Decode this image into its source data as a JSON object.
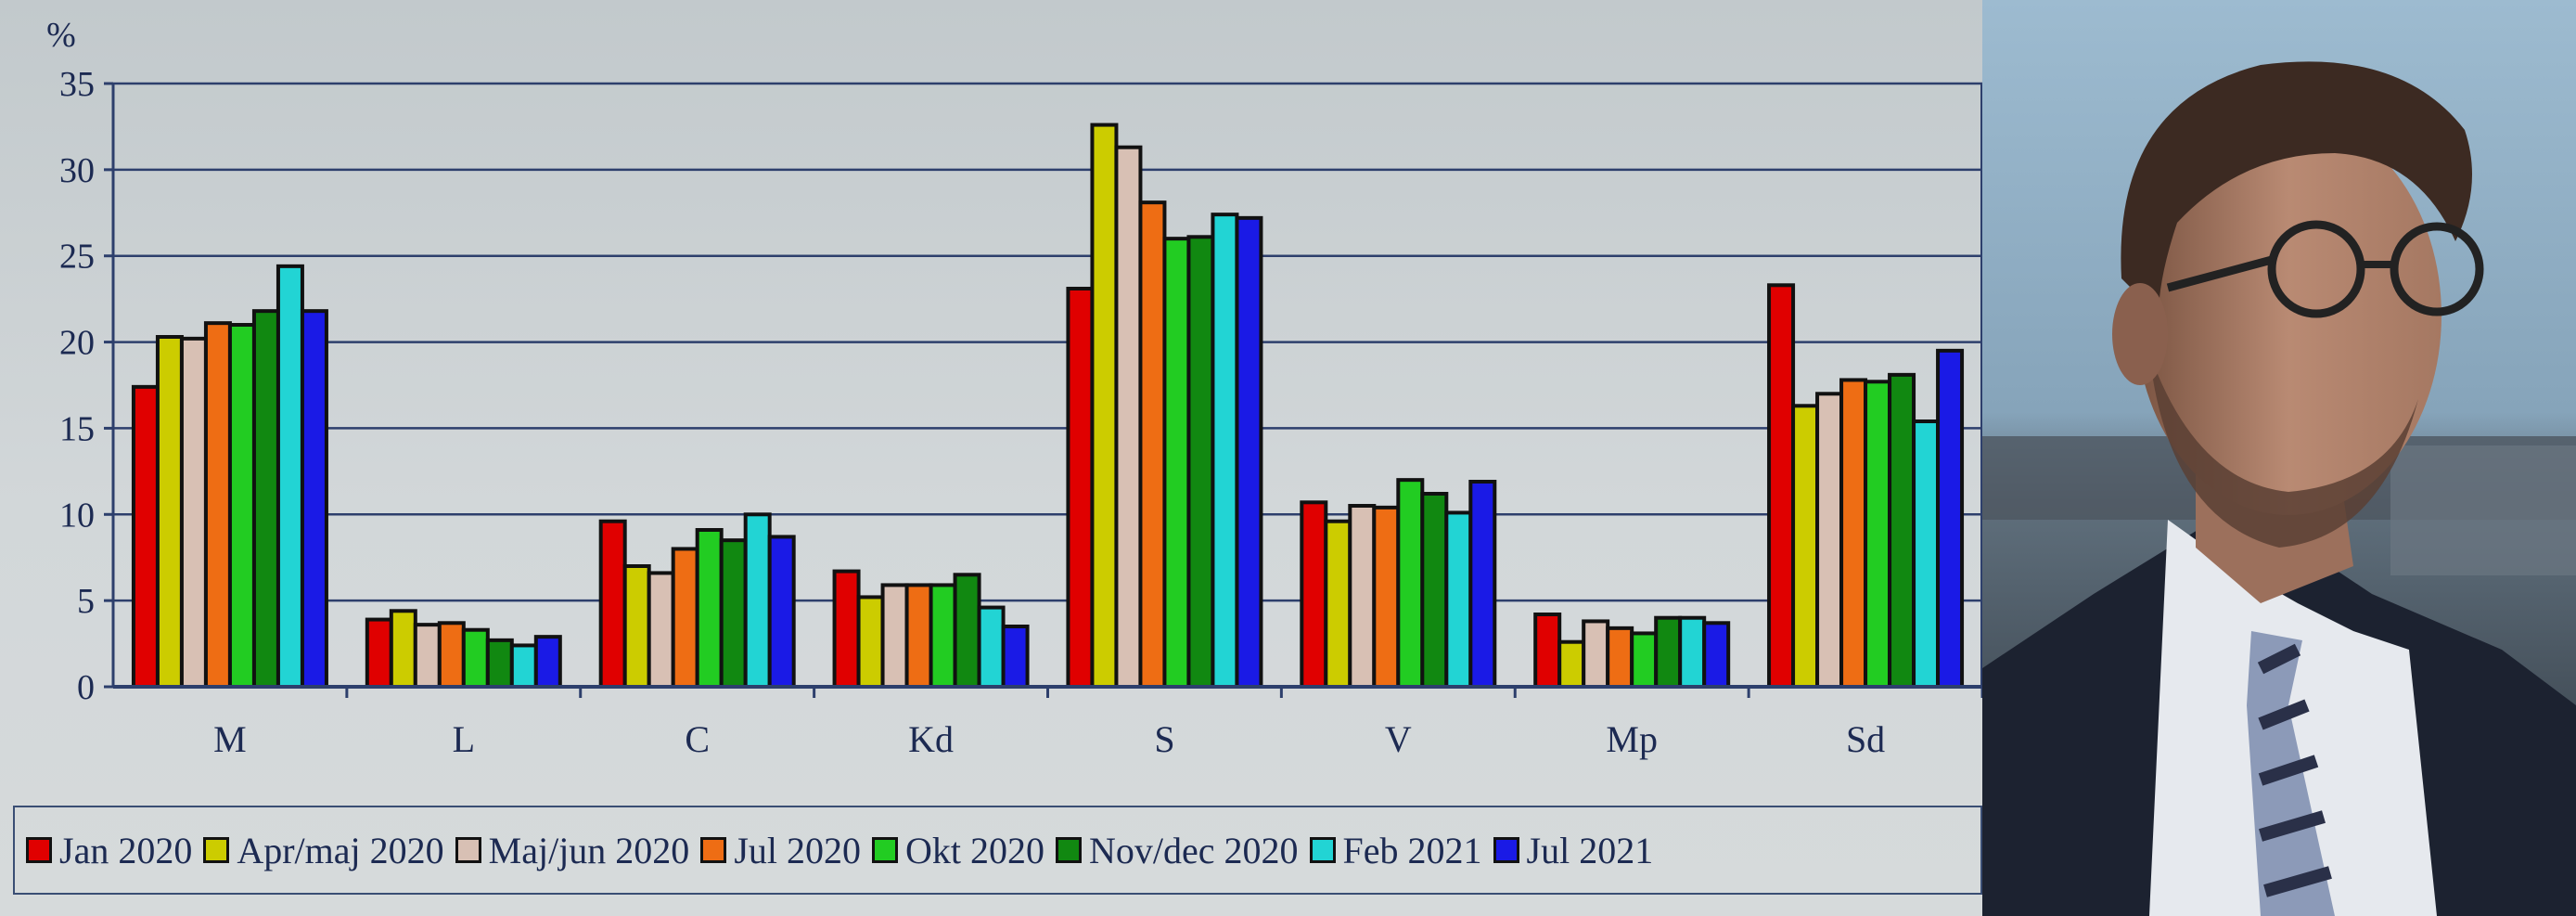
{
  "chart_data": {
    "type": "bar",
    "ylabel": "%",
    "ylim": [
      0,
      35
    ],
    "yticks": [
      0,
      5,
      10,
      15,
      20,
      25,
      30,
      35
    ],
    "grid": true,
    "legend_position": "bottom",
    "categories": [
      "M",
      "L",
      "C",
      "Kd",
      "S",
      "V",
      "Mp",
      "Sd"
    ],
    "series": [
      {
        "name": "Jan 2020",
        "color": "#e00000",
        "values": [
          17.4,
          3.9,
          9.6,
          6.7,
          23.1,
          10.7,
          4.2,
          23.3
        ]
      },
      {
        "name": "Apr/maj 2020",
        "color": "#cccc00",
        "values": [
          20.3,
          4.4,
          7.0,
          5.2,
          32.6,
          9.6,
          2.6,
          16.3
        ]
      },
      {
        "name": "Maj/jun 2020",
        "color": "#d8c0b4",
        "values": [
          20.2,
          3.6,
          6.6,
          5.9,
          31.3,
          10.5,
          3.8,
          17.0
        ]
      },
      {
        "name": "Jul 2020",
        "color": "#ee6d14",
        "values": [
          21.1,
          3.7,
          8.0,
          5.9,
          28.1,
          10.4,
          3.4,
          17.8
        ]
      },
      {
        "name": "Okt 2020",
        "color": "#22cc22",
        "values": [
          21.0,
          3.3,
          9.1,
          5.9,
          26.0,
          12.0,
          3.1,
          17.7
        ]
      },
      {
        "name": "Nov/dec 2020",
        "color": "#118811",
        "values": [
          21.8,
          2.7,
          8.5,
          6.5,
          26.1,
          11.2,
          4.0,
          18.1
        ]
      },
      {
        "name": "Feb 2021",
        "color": "#22d4d4",
        "values": [
          24.4,
          2.4,
          10.0,
          4.6,
          27.4,
          10.1,
          4.0,
          15.4
        ]
      },
      {
        "name": "Jul 2021",
        "color": "#1a1ae6",
        "values": [
          21.8,
          2.9,
          8.7,
          3.5,
          27.2,
          11.9,
          3.7,
          19.5
        ]
      }
    ]
  },
  "photo": {
    "description_icon": "person-portrait"
  }
}
